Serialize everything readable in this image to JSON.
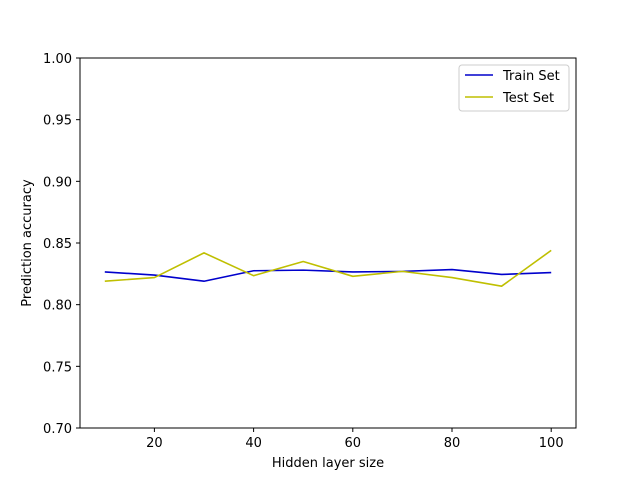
{
  "chart_data": {
    "type": "line",
    "title": "",
    "xlabel": "Hidden layer size",
    "ylabel": "Prediction accuracy",
    "xlim": [
      5,
      105
    ],
    "ylim": [
      0.7,
      1.0
    ],
    "x_ticks": [
      20,
      40,
      60,
      80,
      100
    ],
    "y_ticks": [
      0.7,
      0.75,
      0.8,
      0.85,
      0.9,
      0.95,
      1.0
    ],
    "x_tick_labels": [
      "20",
      "40",
      "60",
      "80",
      "100"
    ],
    "y_tick_labels": [
      "0.70",
      "0.75",
      "0.80",
      "0.85",
      "0.90",
      "0.95",
      "1.00"
    ],
    "grid": false,
    "legend_position": "top-right",
    "x": [
      10,
      20,
      30,
      40,
      50,
      60,
      70,
      80,
      90,
      100
    ],
    "series": [
      {
        "name": "Train Set",
        "color": "#0000cc",
        "values": [
          0.8265,
          0.824,
          0.819,
          0.8275,
          0.828,
          0.8265,
          0.827,
          0.8285,
          0.8245,
          0.826
        ]
      },
      {
        "name": "Test Set",
        "color": "#bfbf00",
        "values": [
          0.819,
          0.822,
          0.842,
          0.8235,
          0.835,
          0.823,
          0.827,
          0.822,
          0.815,
          0.844
        ]
      }
    ]
  }
}
